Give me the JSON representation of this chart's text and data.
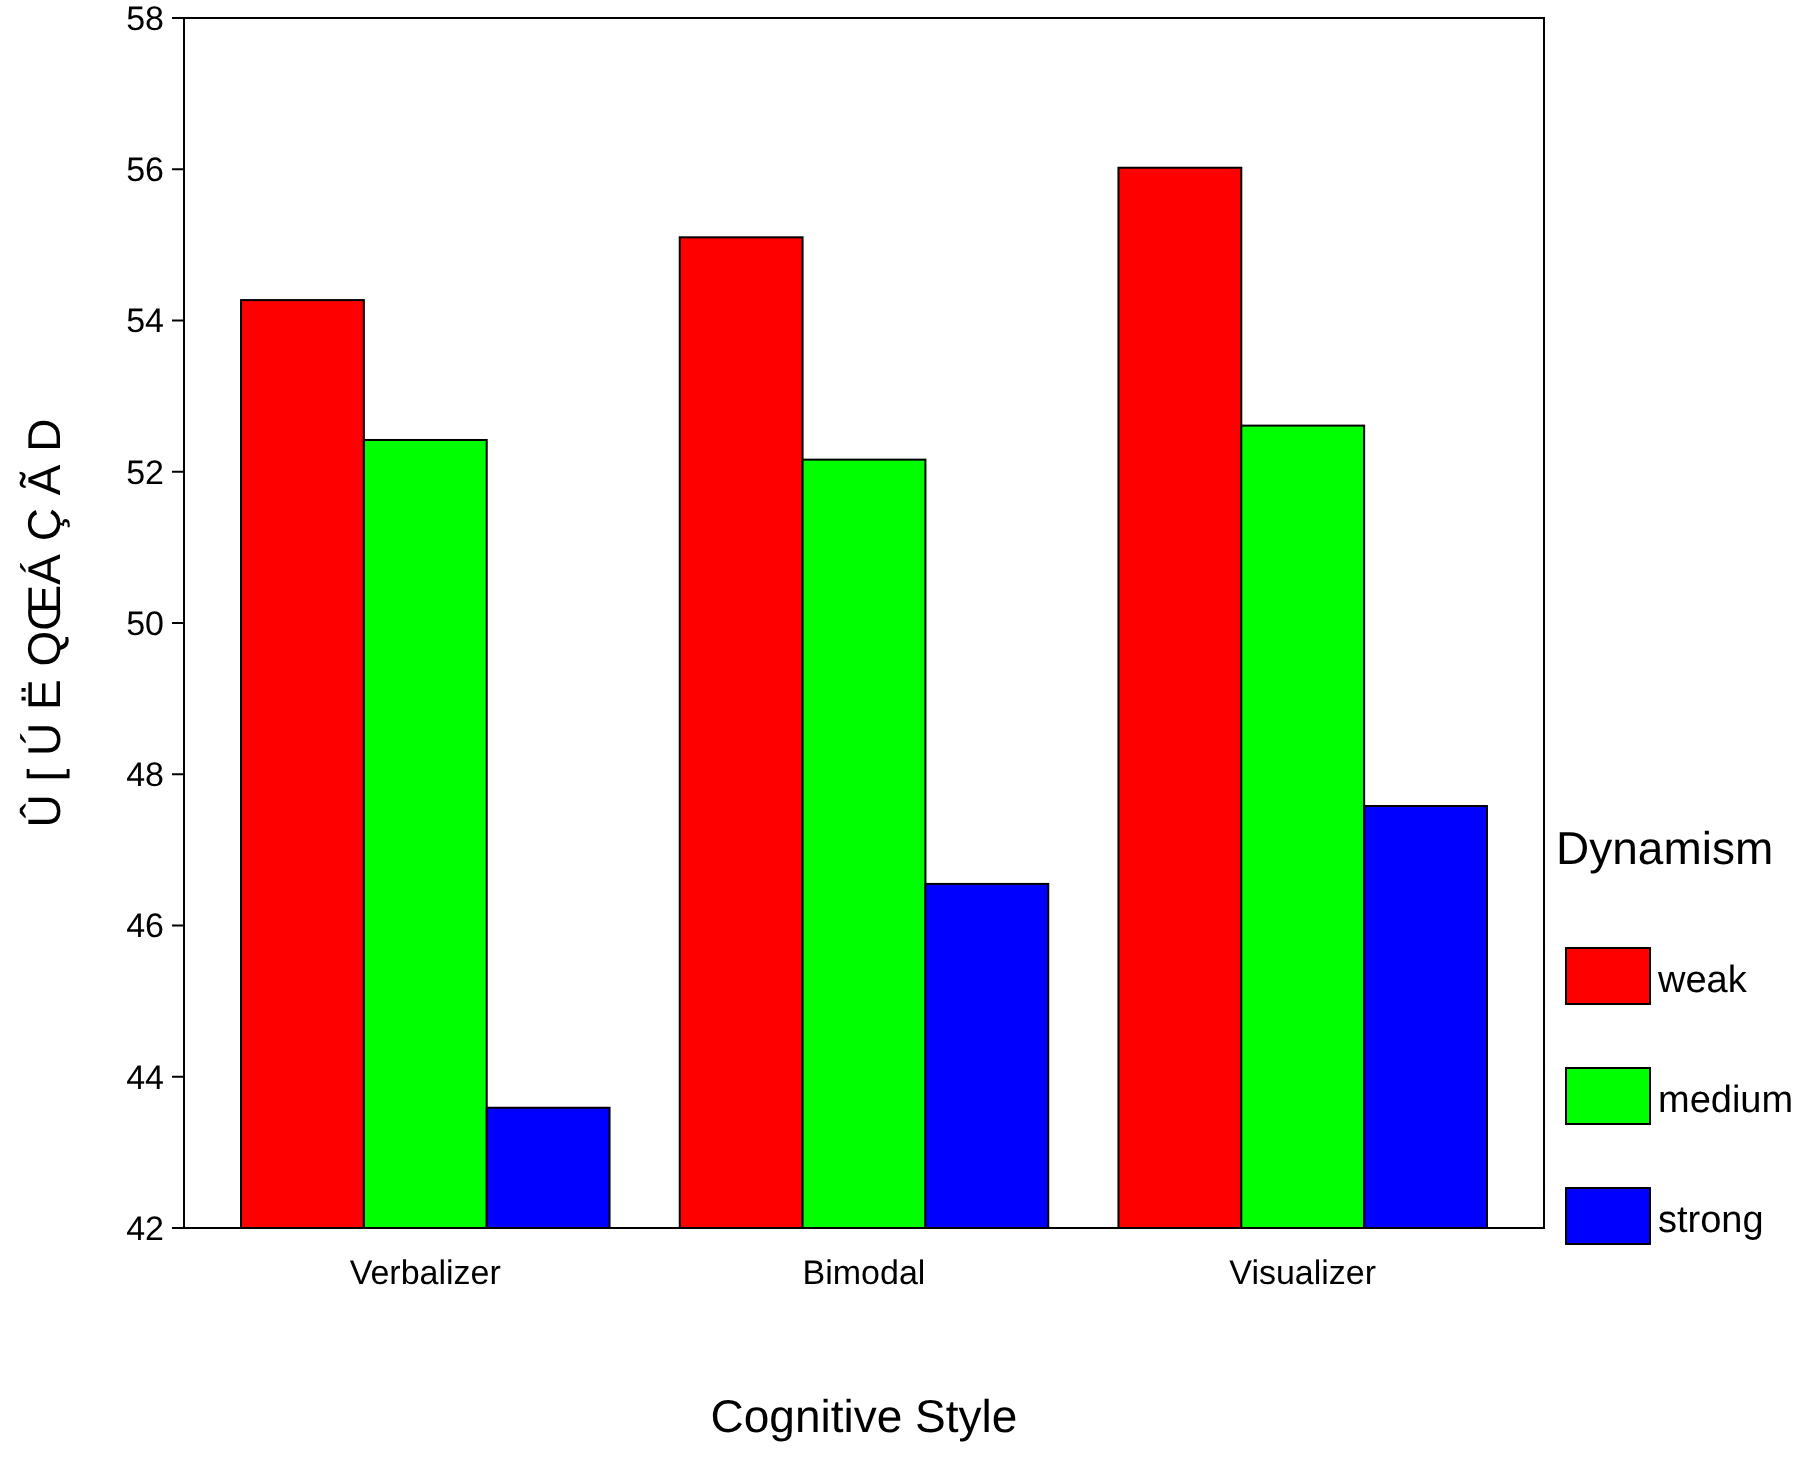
{
  "chart_data": {
    "type": "bar",
    "xlabel": "Cognitive Style",
    "ylabel": "Û [  Ú Ë QŒÁ Ç Ã D",
    "legend_title": "Dynamism",
    "legend": "right",
    "categories": [
      "Verbalizer",
      "Bimodal",
      "Visualizer"
    ],
    "series": [
      {
        "name": "weak",
        "color": "#ff0000",
        "values": [
          54.27,
          55.1,
          56.02
        ]
      },
      {
        "name": "medium",
        "color": "#00ff00",
        "values": [
          52.42,
          52.16,
          52.61
        ]
      },
      {
        "name": "strong",
        "color": "#0000ff",
        "values": [
          43.59,
          46.55,
          47.58
        ]
      }
    ],
    "ylim": [
      42,
      58
    ],
    "yticks": [
      42,
      44,
      46,
      48,
      50,
      52,
      54,
      56,
      58
    ],
    "grid": false
  }
}
